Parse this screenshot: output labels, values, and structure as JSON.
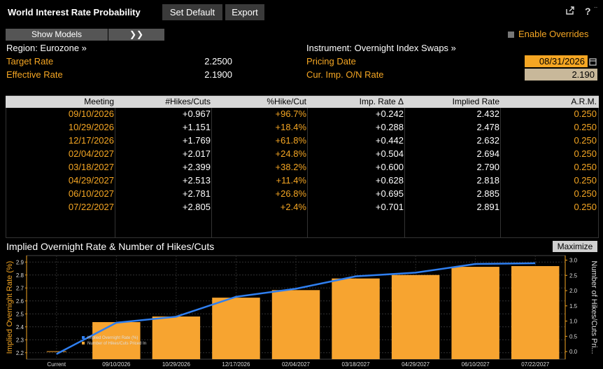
{
  "header": {
    "title": "World Interest Rate Probability",
    "set_default": "Set Default",
    "export": "Export",
    "share_icon": "share-icon",
    "help_icon": "help-icon"
  },
  "toolbar": {
    "show_models": "Show Models",
    "expand": "❯❯",
    "enable_overrides": "Enable Overrides"
  },
  "info": {
    "region": "Region: Eurozone »",
    "instrument": "Instrument: Overnight Index Swaps »",
    "target_rate_label": "Target Rate",
    "target_rate_value": "2.2500",
    "effective_rate_label": "Effective Rate",
    "effective_rate_value": "2.1900",
    "pricing_date_label": "Pricing Date",
    "pricing_date_value": "08/31/2026",
    "cur_imp_label": "Cur. Imp. O/N Rate",
    "cur_imp_value": "2.190"
  },
  "table": {
    "headers": [
      "Meeting",
      "#Hikes/Cuts",
      "%Hike/Cut",
      "Imp. Rate Δ",
      "Implied Rate",
      "A.R.M."
    ],
    "rows": [
      [
        "09/10/2026",
        "+0.967",
        "+96.7%",
        "+0.242",
        "2.432",
        "0.250"
      ],
      [
        "10/29/2026",
        "+1.151",
        "+18.4%",
        "+0.288",
        "2.478",
        "0.250"
      ],
      [
        "12/17/2026",
        "+1.769",
        "+61.8%",
        "+0.442",
        "2.632",
        "0.250"
      ],
      [
        "02/04/2027",
        "+2.017",
        "+24.8%",
        "+0.504",
        "2.694",
        "0.250"
      ],
      [
        "03/18/2027",
        "+2.399",
        "+38.2%",
        "+0.600",
        "2.790",
        "0.250"
      ],
      [
        "04/29/2027",
        "+2.513",
        "+11.4%",
        "+0.628",
        "2.818",
        "0.250"
      ],
      [
        "06/10/2027",
        "+2.781",
        "+26.8%",
        "+0.695",
        "2.885",
        "0.250"
      ],
      [
        "07/22/2027",
        "+2.805",
        "+2.4%",
        "+0.701",
        "2.891",
        "0.250"
      ]
    ]
  },
  "chart": {
    "title": "Implied Overnight Rate & Number of Hikes/Cuts",
    "maximize": "Maximize"
  },
  "chart_data": {
    "type": "bar",
    "categories": [
      "Current",
      "09/10/2026",
      "10/29/2026",
      "12/17/2026",
      "02/04/2027",
      "03/18/2027",
      "04/29/2027",
      "06/10/2027",
      "07/22/2027"
    ],
    "series": [
      {
        "name": "Implied Overnight Rate (%)",
        "type": "line",
        "axis": "left",
        "values": [
          2.19,
          2.432,
          2.478,
          2.632,
          2.694,
          2.79,
          2.818,
          2.885,
          2.891
        ],
        "color": "#2f7ff0"
      },
      {
        "name": "Number of Hikes/Cuts Priced In",
        "type": "bar",
        "axis": "right",
        "values": [
          0,
          0.967,
          1.151,
          1.769,
          2.017,
          2.399,
          2.513,
          2.781,
          2.805
        ],
        "color": "#f7a430"
      }
    ],
    "ylabel": "Implied Overnight Rate (%)",
    "y2label": "Number of Hikes/Cuts Pri...",
    "ylim": [
      2.15,
      2.95
    ],
    "y2lim": [
      -0.25,
      3.15
    ],
    "yticks": [
      "2.2",
      "2.3",
      "2.4",
      "2.5",
      "2.6",
      "2.7",
      "2.8",
      "2.9"
    ],
    "y2ticks": [
      "0.0",
      "0.5",
      "1.0",
      "1.5",
      "2.0",
      "2.5",
      "3.0"
    ],
    "grid": true,
    "legend": "bottom-left",
    "accent_colors": {
      "orange": "#f5a623",
      "blue": "#2f7ff0"
    }
  }
}
